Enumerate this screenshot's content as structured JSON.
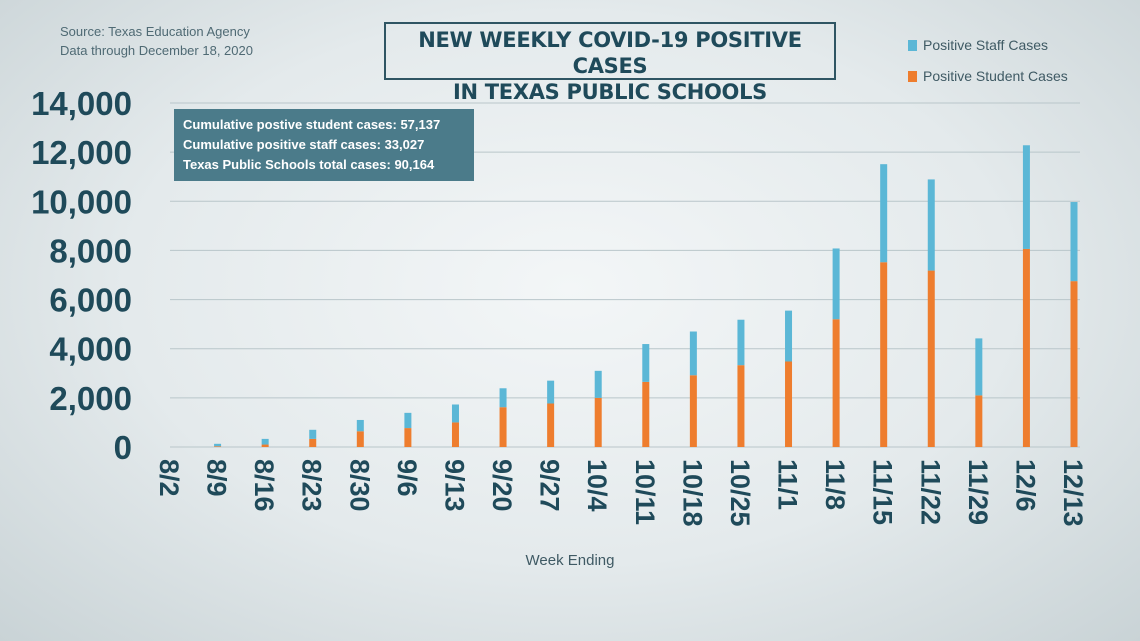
{
  "source": {
    "line1": "Source: Texas Education Agency",
    "line2": "Data through December 18, 2020"
  },
  "title": {
    "line1": "NEW WEEKLY COVID-19 POSITIVE CASES",
    "line2": "IN TEXAS PUBLIC SCHOOLS"
  },
  "legend": {
    "staff": "Positive Staff Cases",
    "student": "Positive Student Cases"
  },
  "callout": {
    "line1": "Cumulative postive student cases: 57,137",
    "line2": "Cumulative positive staff cases: 33,027",
    "line3": "Texas Public Schools total cases: 90,164"
  },
  "colors": {
    "staff": "#5bb7d6",
    "student": "#ee7d2e",
    "axis_text": "#1f4a5a",
    "grid": "#b9c6ca"
  },
  "chart_data": {
    "type": "bar",
    "stacked": true,
    "title": "NEW WEEKLY COVID-19 POSITIVE CASES IN TEXAS PUBLIC SCHOOLS",
    "xlabel": "Week Ending",
    "ylabel": "",
    "ylim": [
      0,
      14000
    ],
    "yticks": [
      0,
      2000,
      4000,
      6000,
      8000,
      10000,
      12000,
      14000
    ],
    "ytick_labels": [
      "0",
      "2,000",
      "4,000",
      "6,000",
      "8,000",
      "10,000",
      "12,000",
      "14,000"
    ],
    "grid": true,
    "legend_position": "top-right",
    "categories": [
      "8/2",
      "8/9",
      "8/16",
      "8/23",
      "8/30",
      "9/6",
      "9/13",
      "9/20",
      "9/27",
      "10/4",
      "10/11",
      "10/18",
      "10/25",
      "11/1",
      "11/8",
      "11/15",
      "11/22",
      "11/29",
      "12/6",
      "12/13"
    ],
    "series": [
      {
        "name": "Positive Student Cases",
        "values": [
          0,
          30,
          100,
          330,
          640,
          770,
          1000,
          1620,
          1770,
          2000,
          2650,
          2920,
          3330,
          3480,
          5200,
          7520,
          7180,
          2100,
          8060,
          6750
        ]
      },
      {
        "name": "Positive Staff Cases",
        "values": [
          0,
          100,
          230,
          370,
          460,
          620,
          730,
          770,
          930,
          1100,
          1540,
          1780,
          1850,
          2070,
          2880,
          3990,
          3710,
          2320,
          4220,
          3220
        ]
      }
    ]
  }
}
